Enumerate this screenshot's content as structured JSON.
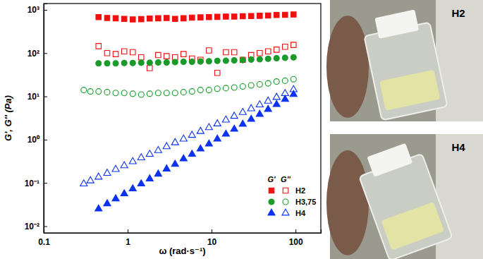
{
  "chart_data": {
    "type": "scatter",
    "log": true,
    "x_label": "ω (rad·s⁻¹)",
    "y_label": "G', G'' (Pa)",
    "xlim": [
      0.1,
      200
    ],
    "ylim": [
      0.007,
      1400
    ],
    "xticks": [
      0.1,
      1,
      10,
      100
    ],
    "yticks": [
      {
        "value": 0.01,
        "label": "10⁻²"
      },
      {
        "value": 0.1,
        "label": "10⁻¹"
      },
      {
        "value": 1,
        "label": "10⁰"
      },
      {
        "value": 10,
        "label": "10¹"
      },
      {
        "value": 100,
        "label": "10²"
      },
      {
        "value": 1000,
        "label": "10³"
      }
    ],
    "legend": "lower right",
    "legend_columns": [
      "G'",
      "G''"
    ],
    "series": [
      {
        "name": "H2",
        "color": "#f01010",
        "marker": "square",
        "x": [
          0.45,
          0.57,
          0.72,
          0.91,
          1.15,
          1.45,
          1.83,
          2.31,
          2.91,
          3.67,
          4.63,
          5.84,
          7.37,
          9.3,
          11.7,
          14.8,
          18.6,
          23.5,
          29.6,
          37.4,
          47.1,
          59.4,
          75,
          94.6
        ],
        "storage_modulus": [
          680,
          650,
          640,
          620,
          600,
          610,
          630,
          640,
          650,
          620,
          640,
          660,
          670,
          680,
          690,
          700,
          700,
          710,
          720,
          730,
          740,
          760,
          770,
          780
        ],
        "loss_modulus": [
          145,
          100,
          95,
          110,
          105,
          80,
          45,
          90,
          85,
          80,
          95,
          75,
          70,
          115,
          35,
          105,
          105,
          70,
          90,
          100,
          110,
          120,
          140,
          155
        ]
      },
      {
        "name": "H3,75",
        "color": "#1a9a2a",
        "marker": "circle",
        "x": [
          0.3,
          0.36,
          0.45,
          0.57,
          0.72,
          0.91,
          1.15,
          1.45,
          1.83,
          2.31,
          2.91,
          3.67,
          4.63,
          5.84,
          7.37,
          9.3,
          11.7,
          14.8,
          18.6,
          23.5,
          29.6,
          37.4,
          47.1,
          59.4,
          75,
          94.6
        ],
        "storage_modulus": [
          null,
          null,
          58,
          58,
          58,
          59,
          59,
          60,
          60,
          61,
          61,
          62,
          63,
          63,
          64,
          65,
          66,
          67,
          68,
          69,
          71,
          72,
          74,
          76,
          78,
          80
        ],
        "loss_modulus": [
          14,
          13,
          13,
          12.5,
          12,
          12,
          11.5,
          11,
          11.5,
          12,
          12,
          12,
          12.5,
          13,
          14,
          14,
          15,
          15.5,
          16,
          17,
          18,
          19,
          20,
          22,
          23,
          25
        ]
      },
      {
        "name": "H4",
        "color": "#0a32f0",
        "marker": "triangle",
        "x": [
          0.3,
          0.36,
          0.45,
          0.57,
          0.72,
          0.91,
          1.15,
          1.45,
          1.83,
          2.31,
          2.91,
          3.67,
          4.63,
          5.84,
          7.37,
          9.3,
          11.7,
          14.8,
          18.6,
          23.5,
          29.6,
          37.4,
          47.1,
          59.4,
          75,
          94.6
        ],
        "storage_modulus": [
          null,
          null,
          0.025,
          0.033,
          0.043,
          0.056,
          0.073,
          0.095,
          0.124,
          0.16,
          0.21,
          0.27,
          0.36,
          0.46,
          0.61,
          0.79,
          1.03,
          1.34,
          1.74,
          2.27,
          2.95,
          3.85,
          5.0,
          6.5,
          8.5,
          11.1
        ],
        "loss_modulus": [
          0.095,
          0.112,
          0.136,
          0.167,
          0.205,
          0.25,
          0.31,
          0.38,
          0.46,
          0.56,
          0.69,
          0.85,
          1.03,
          1.26,
          1.55,
          1.9,
          2.32,
          2.84,
          3.47,
          4.25,
          5.19,
          6.36,
          7.77,
          9.5,
          11.6,
          14.3
        ]
      }
    ]
  },
  "photos": [
    "H2",
    "H4"
  ]
}
